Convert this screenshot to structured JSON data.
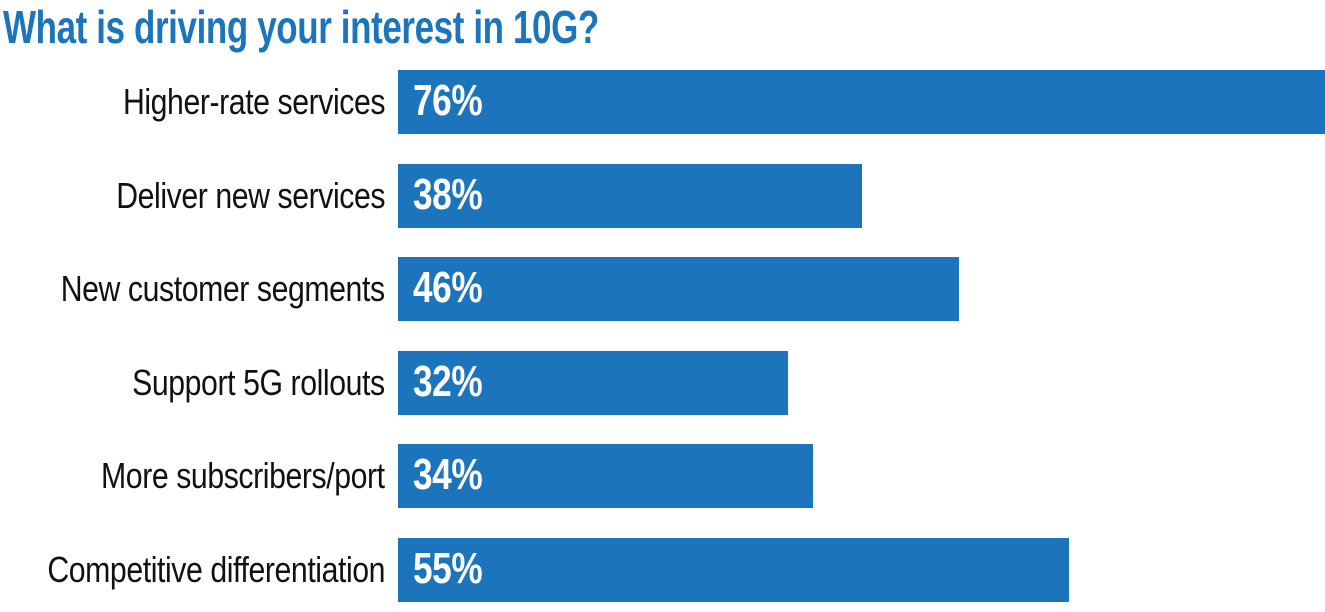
{
  "chart_data": {
    "type": "bar",
    "orientation": "horizontal",
    "title": "What is driving your interest in 10G?",
    "categories": [
      "Higher-rate services",
      "Deliver new services",
      "New customer segments",
      "Support 5G rollouts",
      "More subscribers/port",
      "Competitive differentiation"
    ],
    "values": [
      76,
      38,
      46,
      32,
      34,
      55
    ],
    "value_suffix": "%",
    "xlim": [
      0,
      76
    ],
    "xlabel": "",
    "ylabel": "",
    "grid": false,
    "legend": "none",
    "value_labels_inside_bars": true,
    "bar_color": "#1C75BC",
    "title_color": "#1B75BC",
    "value_label_color": "#FFFFFF",
    "category_label_color": "#111111",
    "background_color": "#FFFFFF"
  }
}
